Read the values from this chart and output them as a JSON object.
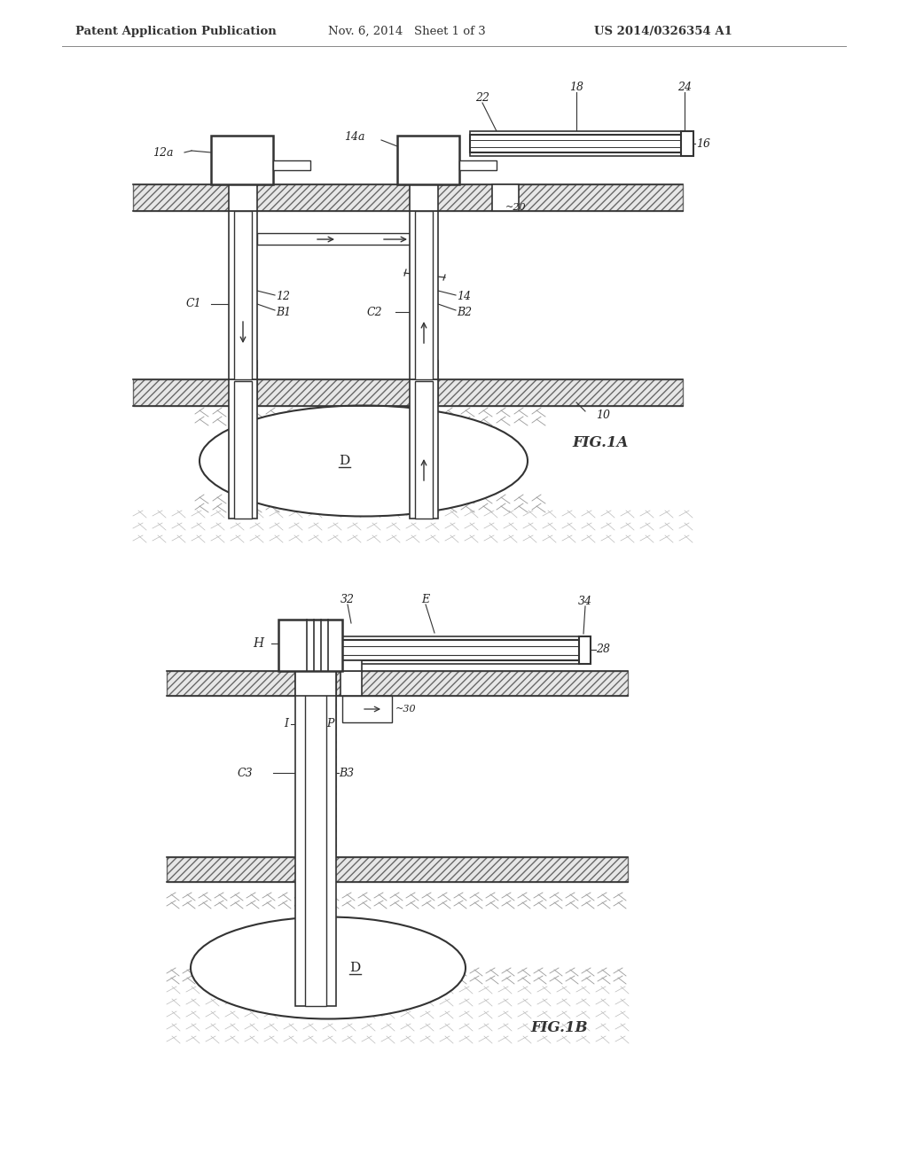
{
  "bg_color": "#ffffff",
  "header_text": "Patent Application Publication",
  "header_date": "Nov. 6, 2014   Sheet 1 of 3",
  "header_patent": "US 2014/0326354 A1",
  "fig1a_label": "FIG.1A",
  "fig1b_label": "FIG.1B",
  "label_color": "#222222",
  "line_color": "#333333",
  "hatch_color": "#555555"
}
